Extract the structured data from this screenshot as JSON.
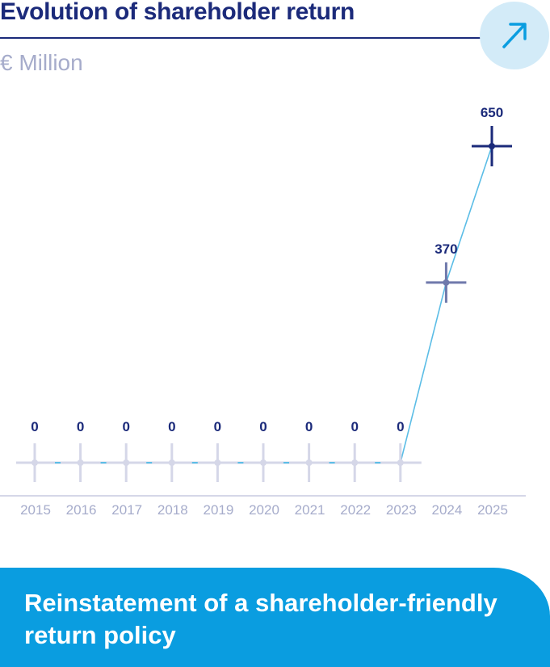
{
  "header": {
    "title": "Evolution of shareholder return",
    "unit": "€ Million",
    "badge_icon": "arrow-up-right-icon"
  },
  "chart_data": {
    "type": "line",
    "title": "Evolution of shareholder return",
    "ylabel": "€ Million",
    "categories": [
      "2015",
      "2016",
      "2017",
      "2018",
      "2019",
      "2020",
      "2021",
      "2022",
      "2023",
      "2024",
      "2025"
    ],
    "values": [
      0,
      0,
      0,
      0,
      0,
      0,
      0,
      0,
      0,
      370,
      650
    ],
    "labels": [
      "0",
      "0",
      "0",
      "0",
      "0",
      "0",
      "0",
      "0",
      "0",
      "370",
      "650"
    ],
    "ylim": [
      0,
      650
    ],
    "grid": false,
    "colors": {
      "line": "#5bbde6",
      "zero_marker": "#d5d7e8",
      "mid_marker": "#6f79ab",
      "top_marker": "#1b2a7a",
      "label": "#1b2a7a",
      "tick": "#a6accb"
    }
  },
  "banner": {
    "text": "Reinstatement of a shareholder-friendly return policy"
  }
}
